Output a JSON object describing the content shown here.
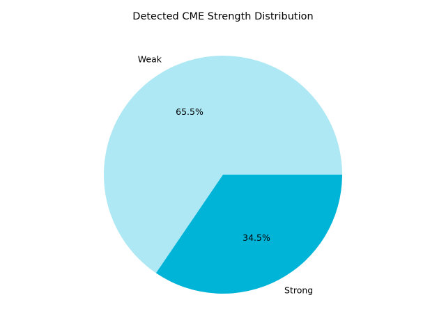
{
  "chart_data": {
    "type": "pie",
    "title": "Detected CME Strength Distribution",
    "slices": [
      {
        "label": "Weak",
        "value": 65.5,
        "percent_label": "65.5%",
        "color": "#aee8f4"
      },
      {
        "label": "Strong",
        "value": 34.5,
        "percent_label": "34.5%",
        "color": "#00b4d8"
      }
    ],
    "start_angle_deg": 0,
    "direction": "counterclockwise",
    "legend": "none"
  }
}
